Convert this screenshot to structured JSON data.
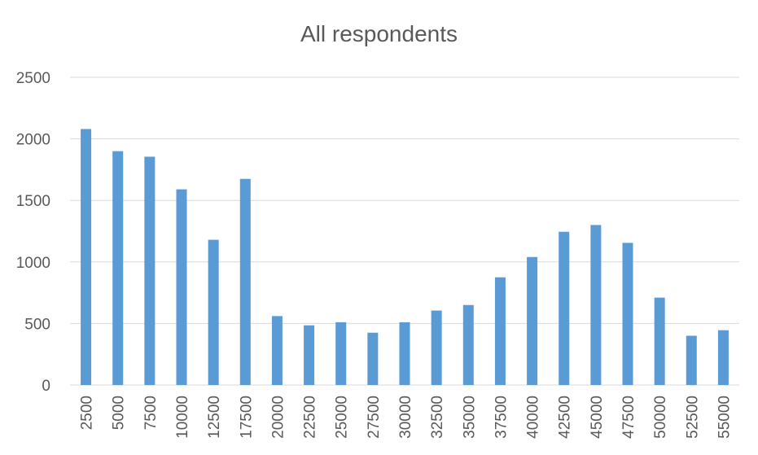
{
  "chart_data": {
    "type": "bar",
    "title": "All respondents",
    "xlabel": "",
    "ylabel": "",
    "categories": [
      "2500",
      "5000",
      "7500",
      "10000",
      "12500",
      "17500",
      "20000",
      "22500",
      "25000",
      "27500",
      "30000",
      "32500",
      "35000",
      "37500",
      "40000",
      "42500",
      "45000",
      "47500",
      "50000",
      "52500",
      "55000"
    ],
    "values": [
      2080,
      1900,
      1855,
      1590,
      1180,
      1675,
      560,
      485,
      510,
      425,
      510,
      605,
      650,
      875,
      1040,
      1245,
      1300,
      1155,
      710,
      400,
      445
    ],
    "ylim": [
      0,
      2500
    ],
    "yticks": [
      "0",
      "500",
      "1000",
      "1500",
      "2000",
      "2500"
    ],
    "grid": true,
    "legend": "none",
    "colors": {
      "bar": "#5b9bd5",
      "grid": "#d9d9d9",
      "text": "#595959"
    }
  }
}
